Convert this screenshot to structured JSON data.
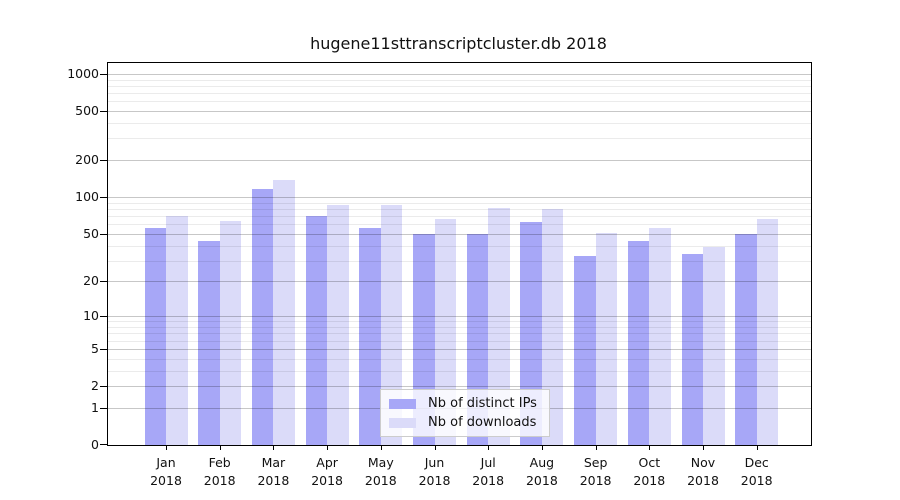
{
  "chart_data": {
    "type": "bar",
    "title": "hugene11sttranscriptcluster.db 2018",
    "categories": [
      "Jan 2018",
      "Feb 2018",
      "Mar 2018",
      "Apr 2018",
      "May 2018",
      "Jun 2018",
      "Jul 2018",
      "Aug 2018",
      "Sep 2018",
      "Oct 2018",
      "Nov 2018",
      "Dec 2018"
    ],
    "series": [
      {
        "name": "Nb of distinct IPs",
        "color": "#a7a7f7",
        "values": [
          56,
          44,
          116,
          70,
          56,
          50,
          50,
          62,
          33,
          44,
          34,
          50
        ]
      },
      {
        "name": "Nb of downloads",
        "color": "#dbdbf9",
        "values": [
          70,
          64,
          138,
          87,
          87,
          66,
          82,
          80,
          51,
          56,
          39,
          66
        ]
      }
    ],
    "xlabel": "",
    "ylabel": "",
    "yscale": "log1p",
    "y_ticks": [
      0,
      1,
      2,
      5,
      10,
      20,
      50,
      100,
      200,
      500,
      1000
    ],
    "y_minor_ticks": [
      3,
      4,
      6,
      7,
      8,
      9,
      30,
      40,
      60,
      70,
      80,
      90,
      300,
      400,
      600,
      700,
      800,
      900
    ],
    "ylim": [
      0,
      1224
    ],
    "grid": "horizontal, major and minor, drawn over bars",
    "legend_position": "inside bottom center-right"
  }
}
